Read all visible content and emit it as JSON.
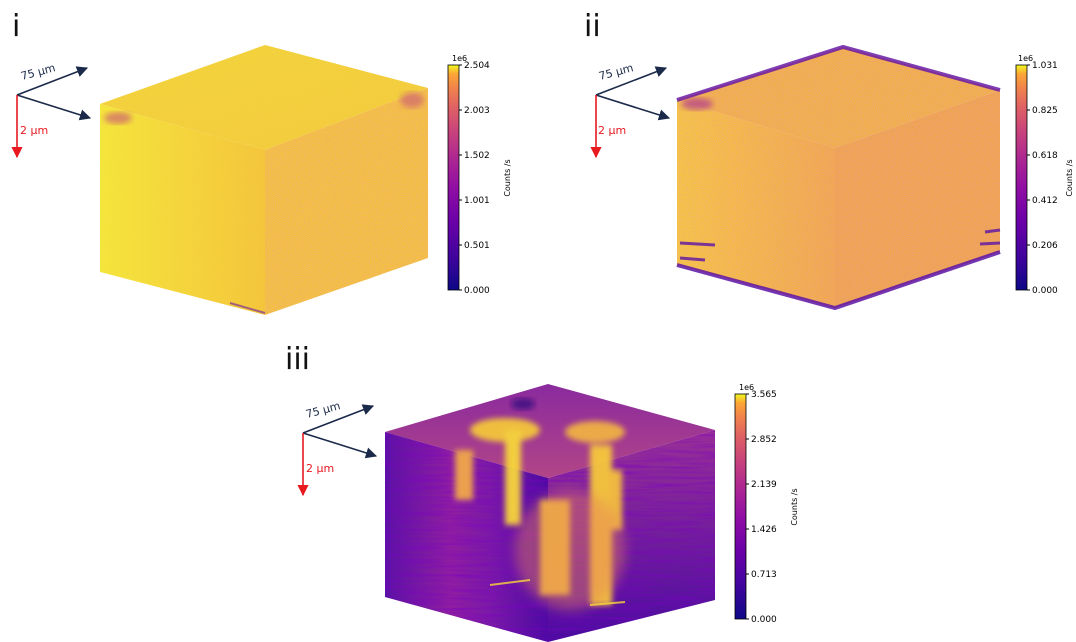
{
  "colors": {
    "colormap": "plasma",
    "axis_lateral": "#1b2a4a",
    "axis_depth": "#e8191f"
  },
  "panels": [
    {
      "label": "i",
      "axis_lateral": "75 µm",
      "axis_depth": "2 µm",
      "colorbar": {
        "exponent": "1e6",
        "title": "Counts /s",
        "ticks": [
          "2.504",
          "2.003",
          "1.502",
          "1.001",
          "0.501",
          "0.000"
        ]
      }
    },
    {
      "label": "ii",
      "axis_lateral": "75 µm",
      "axis_depth": "2 µm",
      "colorbar": {
        "exponent": "1e6",
        "title": "Counts /s",
        "ticks": [
          "1.031",
          "0.825",
          "0.618",
          "0.412",
          "0.206",
          "0.000"
        ]
      }
    },
    {
      "label": "iii",
      "axis_lateral": "75 µm",
      "axis_depth": "2 µm",
      "colorbar": {
        "exponent": "1e6",
        "title": "Counts /s",
        "ticks": [
          "3.565",
          "2.852",
          "2.139",
          "1.426",
          "0.713",
          "0.000"
        ]
      }
    }
  ]
}
